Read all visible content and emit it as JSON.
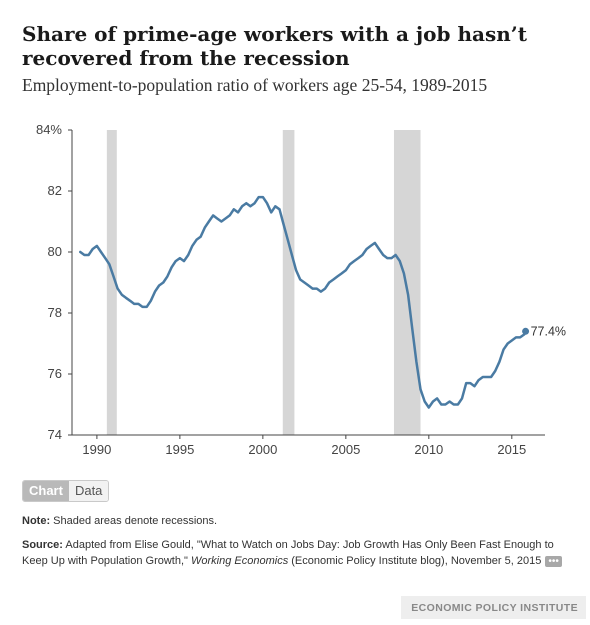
{
  "header": {
    "title": "Share of prime-age workers with a job hasn’t recovered from the recession",
    "subtitle": "Employment-to-population ratio of workers age 25-54, 1989-2015"
  },
  "colors": {
    "line": "#4a7ba3",
    "recession": "#d6d6d6",
    "axis": "#444444"
  },
  "chart_data": {
    "type": "line",
    "title": "Share of prime-age workers with a job hasn’t recovered from the recession",
    "subtitle": "Employment-to-population ratio of workers age 25-54, 1989-2015",
    "xlabel": "",
    "ylabel": "",
    "xlim": [
      1988.5,
      2017
    ],
    "ylim": [
      74,
      84
    ],
    "yticks": [
      74,
      76,
      78,
      80,
      82,
      84
    ],
    "ytick_labels": [
      "74",
      "76",
      "78",
      "80",
      "82",
      "84%"
    ],
    "xticks": [
      1990,
      1995,
      2000,
      2005,
      2010,
      2015
    ],
    "xtick_labels": [
      "1990",
      "1995",
      "2000",
      "2005",
      "2010",
      "2015"
    ],
    "grid": false,
    "recessions": [
      [
        1990.6,
        1991.2
      ],
      [
        2001.2,
        2001.9
      ],
      [
        2007.9,
        2009.5
      ]
    ],
    "end_label": "77.4%",
    "series": [
      {
        "x": [
          1989.0,
          1989.25,
          1989.5,
          1989.75,
          1990.0,
          1990.25,
          1990.5,
          1990.75,
          1991.0,
          1991.25,
          1991.5,
          1991.75,
          1992.0,
          1992.25,
          1992.5,
          1992.75,
          1993.0,
          1993.25,
          1993.5,
          1993.75,
          1994.0,
          1994.25,
          1994.5,
          1994.75,
          1995.0,
          1995.25,
          1995.5,
          1995.75,
          1996.0,
          1996.25,
          1996.5,
          1996.75,
          1997.0,
          1997.25,
          1997.5,
          1997.75,
          1998.0,
          1998.25,
          1998.5,
          1998.75,
          1999.0,
          1999.25,
          1999.5,
          1999.75,
          2000.0,
          2000.25,
          2000.5,
          2000.75,
          2001.0,
          2001.25,
          2001.5,
          2001.75,
          2002.0,
          2002.25,
          2002.5,
          2002.75,
          2003.0,
          2003.25,
          2003.5,
          2003.75,
          2004.0,
          2004.25,
          2004.5,
          2004.75,
          2005.0,
          2005.25,
          2005.5,
          2005.75,
          2006.0,
          2006.25,
          2006.5,
          2006.75,
          2007.0,
          2007.25,
          2007.5,
          2007.75,
          2008.0,
          2008.25,
          2008.5,
          2008.75,
          2009.0,
          2009.25,
          2009.5,
          2009.75,
          2010.0,
          2010.25,
          2010.5,
          2010.75,
          2011.0,
          2011.25,
          2011.5,
          2011.75,
          2012.0,
          2012.25,
          2012.5,
          2012.75,
          2013.0,
          2013.25,
          2013.5,
          2013.75,
          2014.0,
          2014.25,
          2014.5,
          2014.75,
          2015.0,
          2015.25,
          2015.5,
          2015.75,
          2015.83
        ],
        "y": [
          80.0,
          79.9,
          79.9,
          80.1,
          80.2,
          80.0,
          79.8,
          79.6,
          79.2,
          78.8,
          78.6,
          78.5,
          78.4,
          78.3,
          78.3,
          78.2,
          78.2,
          78.4,
          78.7,
          78.9,
          79.0,
          79.2,
          79.5,
          79.7,
          79.8,
          79.7,
          79.9,
          80.2,
          80.4,
          80.5,
          80.8,
          81.0,
          81.2,
          81.1,
          81.0,
          81.1,
          81.2,
          81.4,
          81.3,
          81.5,
          81.6,
          81.5,
          81.6,
          81.8,
          81.8,
          81.6,
          81.3,
          81.5,
          81.4,
          80.9,
          80.4,
          79.9,
          79.4,
          79.1,
          79.0,
          78.9,
          78.8,
          78.8,
          78.7,
          78.8,
          79.0,
          79.1,
          79.2,
          79.3,
          79.4,
          79.6,
          79.7,
          79.8,
          79.9,
          80.1,
          80.2,
          80.3,
          80.1,
          79.9,
          79.8,
          79.8,
          79.9,
          79.7,
          79.3,
          78.6,
          77.5,
          76.4,
          75.5,
          75.1,
          74.9,
          75.1,
          75.2,
          75.0,
          75.0,
          75.1,
          75.0,
          75.0,
          75.2,
          75.7,
          75.7,
          75.6,
          75.8,
          75.9,
          75.9,
          75.9,
          76.1,
          76.4,
          76.8,
          77.0,
          77.1,
          77.2,
          77.2,
          77.3,
          77.4
        ]
      }
    ]
  },
  "toggle": {
    "chart_label": "Chart",
    "data_label": "Data"
  },
  "footer": {
    "note_label": "Note:",
    "note_text": " Shaded areas denote recessions.",
    "source_label": "Source:",
    "source_text_1": " Adapted from Elise Gould, \"What to Watch on Jobs Day: Job Growth Has Only Been Fast Enough to Keep Up with Population Growth,\" ",
    "source_publication": "Working Economics",
    "source_text_2": " (Economic Policy Institute blog), November 5, 2015",
    "more_label": "•••",
    "organization": "ECONOMIC POLICY INSTITUTE"
  }
}
